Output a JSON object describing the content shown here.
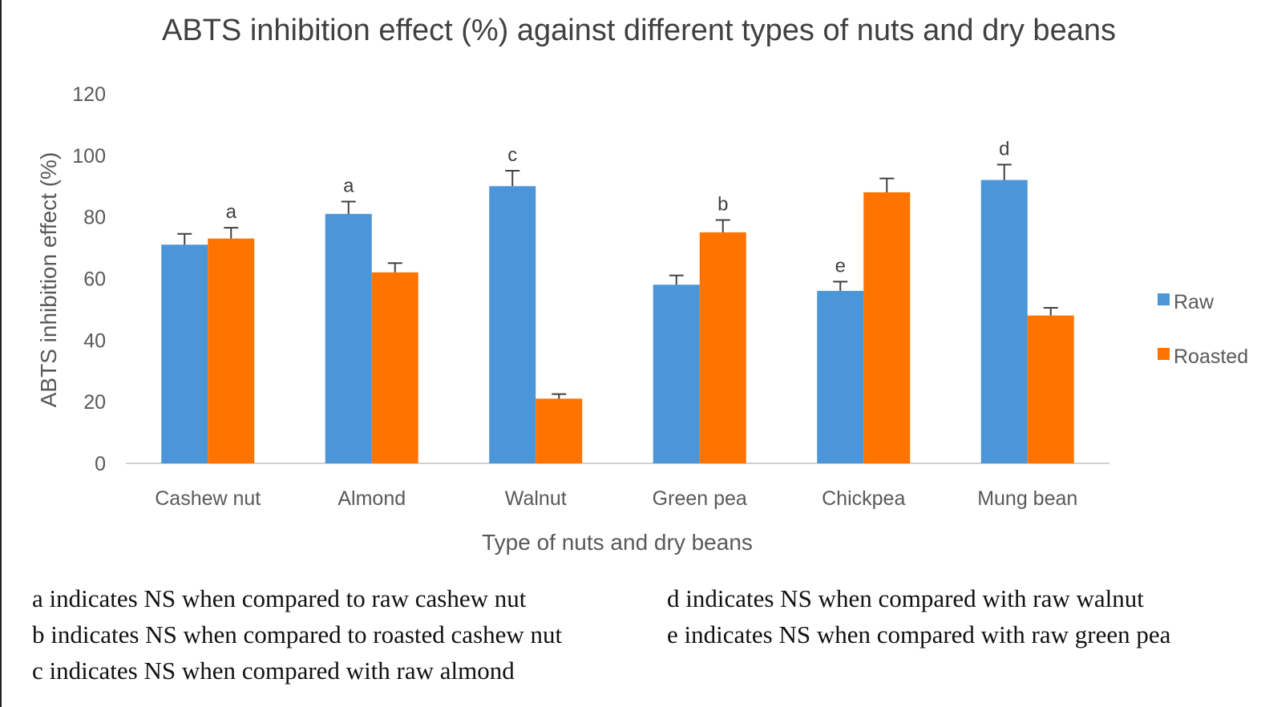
{
  "chart_data": {
    "type": "bar",
    "title": "ABTS inhibition effect (%) against different types of nuts and dry beans",
    "xlabel": "Type of nuts and dry beans",
    "ylabel": "ABTS inhibition effect (%)",
    "ylim": [
      0,
      120
    ],
    "yticks": [
      "0",
      "20",
      "40",
      "60",
      "80",
      "100",
      "120"
    ],
    "grid": false,
    "legend_position": "right",
    "categories": [
      "Cashew nut",
      "Almond",
      "Walnut",
      "Green pea",
      "Chickpea",
      "Mung bean"
    ],
    "series": [
      {
        "name": "Raw",
        "color": "#4a96d9",
        "values": [
          71,
          81,
          90,
          58,
          56,
          92
        ],
        "error": [
          3.5,
          4,
          5,
          3,
          3,
          5
        ],
        "significance_labels": [
          "",
          "a",
          "c",
          "",
          "e",
          "d"
        ]
      },
      {
        "name": "Roasted",
        "color": "#ff7300",
        "values": [
          73,
          62,
          21,
          75,
          88,
          48
        ],
        "error": [
          3.5,
          3,
          1.5,
          4,
          4.5,
          2.5
        ],
        "significance_labels": [
          "a",
          "",
          "",
          "b",
          "",
          ""
        ]
      }
    ]
  },
  "footnotes": {
    "left": [
      "a indicates NS when compared to raw cashew nut",
      "b indicates NS when compared to roasted cashew nut",
      "c indicates NS when compared with raw almond"
    ],
    "right": [
      "d indicates NS when compared with raw walnut",
      "e indicates NS when compared with raw green pea"
    ]
  }
}
